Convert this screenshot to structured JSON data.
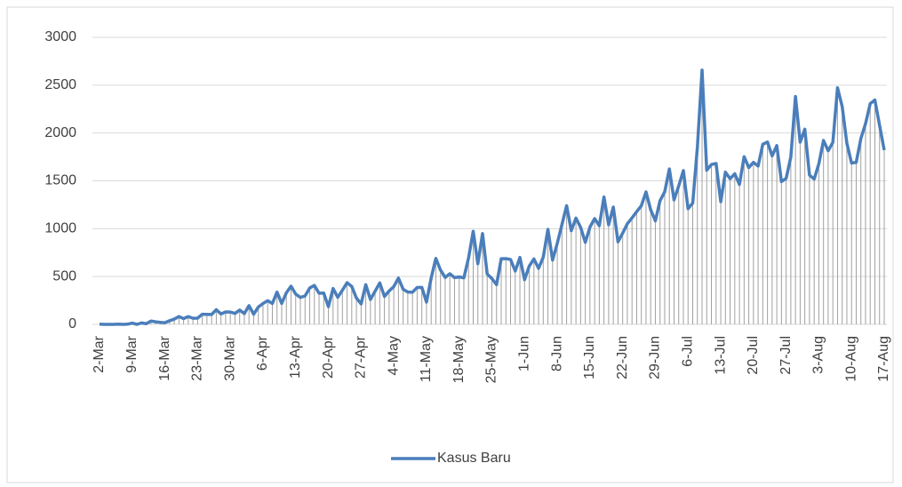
{
  "chart_data": {
    "type": "line",
    "categories": [
      "2-Mar",
      null,
      null,
      null,
      null,
      null,
      null,
      "9-Mar",
      null,
      null,
      null,
      null,
      null,
      null,
      "16-Mar",
      null,
      null,
      null,
      null,
      null,
      null,
      "23-Mar",
      null,
      null,
      null,
      null,
      null,
      null,
      "30-Mar",
      null,
      null,
      null,
      null,
      null,
      null,
      "6-Apr",
      null,
      null,
      null,
      null,
      null,
      null,
      "13-Apr",
      null,
      null,
      null,
      null,
      null,
      null,
      "20-Apr",
      null,
      null,
      null,
      null,
      null,
      null,
      "27-Apr",
      null,
      null,
      null,
      null,
      null,
      null,
      "4-May",
      null,
      null,
      null,
      null,
      null,
      null,
      "11-May",
      null,
      null,
      null,
      null,
      null,
      null,
      "18-May",
      null,
      null,
      null,
      null,
      null,
      null,
      "25-May",
      null,
      null,
      null,
      null,
      null,
      null,
      "1-Jun",
      null,
      null,
      null,
      null,
      null,
      null,
      "8-Jun",
      null,
      null,
      null,
      null,
      null,
      null,
      "15-Jun",
      null,
      null,
      null,
      null,
      null,
      null,
      "22-Jun",
      null,
      null,
      null,
      null,
      null,
      null,
      "29-Jun",
      null,
      null,
      null,
      null,
      null,
      null,
      "6-Jul",
      null,
      null,
      null,
      null,
      null,
      null,
      "13-Jul",
      null,
      null,
      null,
      null,
      null,
      null,
      "20-Jul",
      null,
      null,
      null,
      null,
      null,
      null,
      "27-Jul",
      null,
      null,
      null,
      null,
      null,
      null,
      "3-Aug",
      null,
      null,
      null,
      null,
      null,
      null,
      "10-Aug",
      null,
      null,
      null,
      null,
      null,
      null,
      "17-Aug"
    ],
    "series": [
      {
        "name": "Kasus Baru",
        "color": "#4a7ebb",
        "values": [
          2,
          0,
          0,
          0,
          2,
          0,
          2,
          13,
          0,
          15,
          7,
          35,
          27,
          21,
          17,
          38,
          55,
          82,
          60,
          81,
          64,
          65,
          106,
          105,
          103,
          153,
          109,
          130,
          129,
          114,
          149,
          113,
          196,
          106,
          181,
          218,
          247,
          218,
          337,
          219,
          330,
          399,
          316,
          282,
          297,
          380,
          407,
          325,
          327,
          185,
          375,
          283,
          357,
          436,
          396,
          275,
          214,
          415,
          260,
          347,
          433,
          292,
          349,
          395,
          484,
          367,
          338,
          336,
          386,
          387,
          233,
          484,
          689,
          568,
          490,
          529,
          489,
          496,
          486,
          693,
          973,
          634,
          949,
          526,
          479,
          415,
          686,
          687,
          678,
          557,
          700,
          467,
          609,
          684,
          585,
          703,
          993,
          672,
          847,
          1043,
          1241,
          979,
          1111,
          1014,
          857,
          1017,
          1106,
          1031,
          1331,
          1041,
          1226,
          862,
          954,
          1051,
          1113,
          1178,
          1240,
          1385,
          1198,
          1082,
          1293,
          1385,
          1624,
          1301,
          1447,
          1607,
          1209,
          1268,
          1853,
          2657,
          1611,
          1671,
          1681,
          1282,
          1591,
          1522,
          1574,
          1462,
          1752,
          1639,
          1693,
          1655,
          1882,
          1906,
          1761,
          1868,
          1492,
          1525,
          1748,
          2381,
          1904,
          2040,
          1560,
          1519,
          1679,
          1922,
          1815,
          1902,
          2473,
          2277,
          1893,
          1687,
          1693,
          1942,
          2098,
          2307,
          2345,
          2081,
          1821
        ]
      }
    ],
    "ylim": [
      0,
      3000
    ],
    "yticks": [
      0,
      500,
      1000,
      1500,
      2000,
      2500,
      3000
    ],
    "grid": true,
    "drop_lines": true,
    "legend": "bottom"
  }
}
